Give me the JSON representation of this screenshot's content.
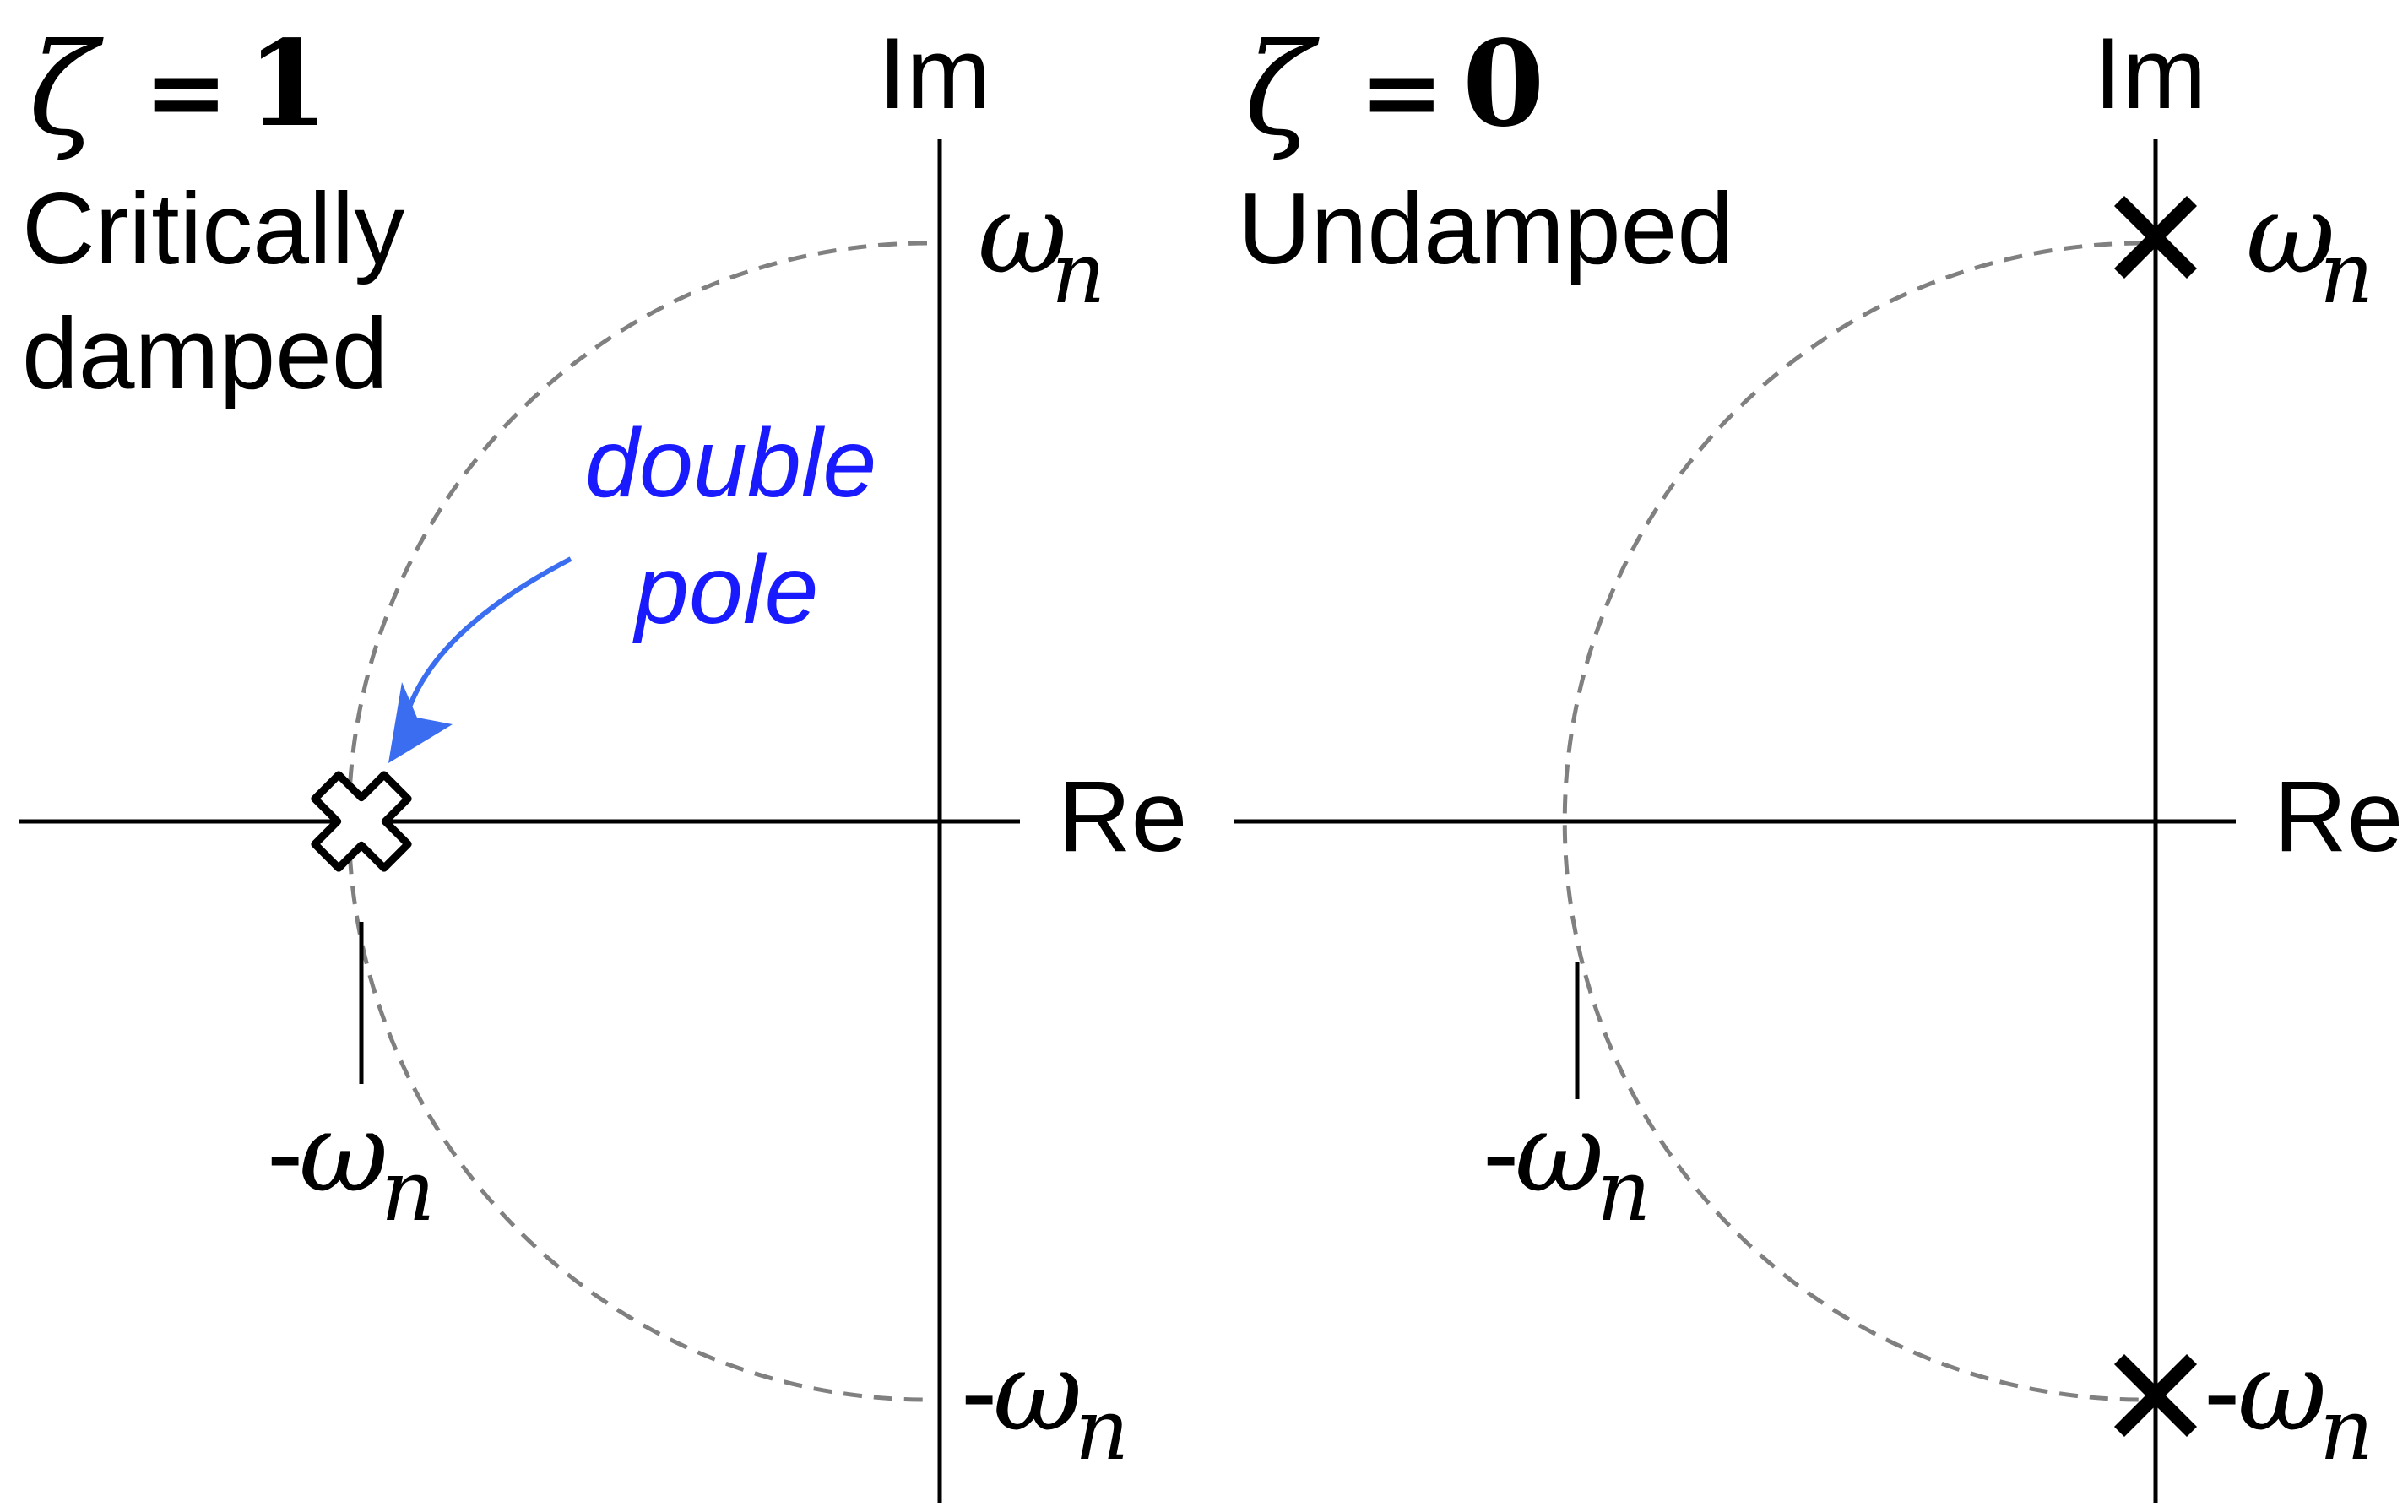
{
  "panels": [
    {
      "zeta_symbol": "ζ",
      "equals": "=",
      "zeta_value": "1",
      "title_line1": "Critically",
      "title_line2": "damped",
      "im_axis_label": "Im",
      "re_axis_label": "Re",
      "omega_symbol": "ω",
      "subscript": "n",
      "minus": "-",
      "annotation_line1": "double",
      "annotation_line2": "pole",
      "annotation_color": "#1a1aff",
      "arrow_color": "#3a6df0"
    },
    {
      "zeta_symbol": "ζ",
      "equals": "=",
      "zeta_value": "0",
      "title_line1": "Undamped",
      "im_axis_label": "Im",
      "re_axis_label": "Re",
      "omega_symbol": "ω",
      "subscript": "n",
      "minus": "-"
    }
  ],
  "colors": {
    "axis": "#000000",
    "circle": "#808080",
    "pole": "#000000"
  }
}
